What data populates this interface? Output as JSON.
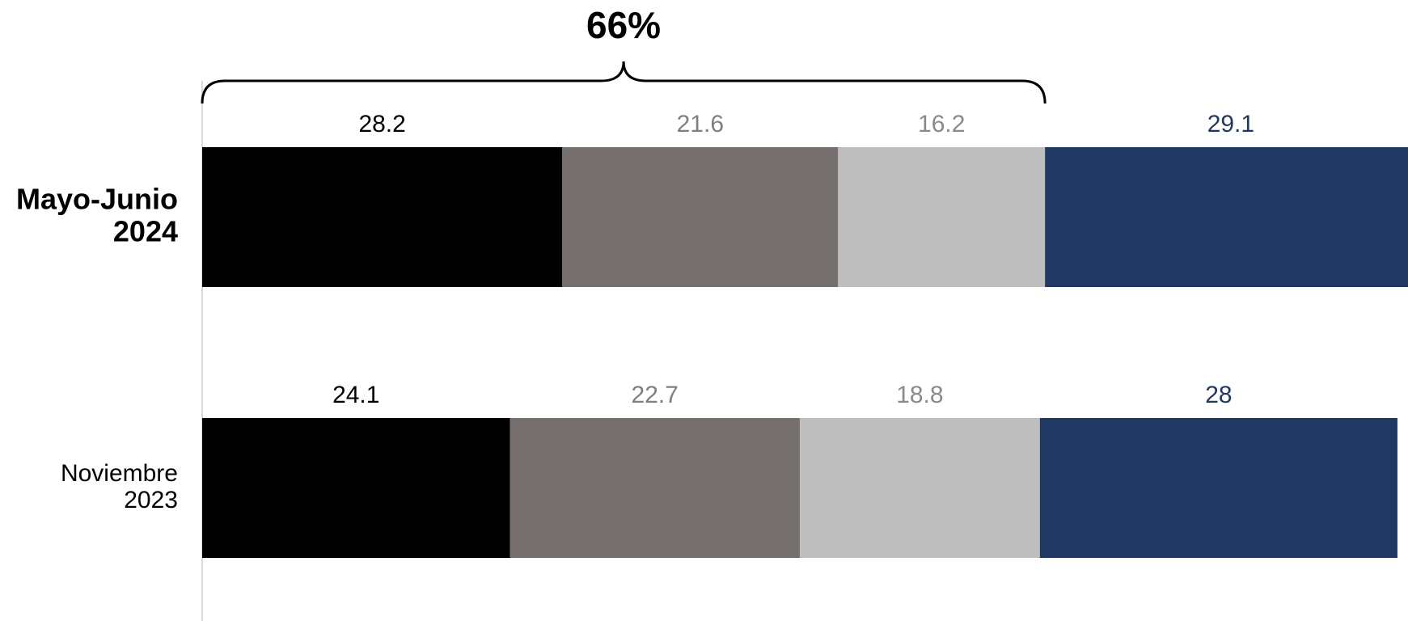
{
  "chart_data": {
    "type": "stacked-bar-horizontal",
    "categories": [
      "Mayo-Junio 2024",
      "Noviembre 2023"
    ],
    "series": [
      {
        "color": "#000000",
        "label_color": "#000000",
        "values": [
          28.2,
          24.1
        ]
      },
      {
        "color": "#75706e",
        "label_color": "#7f7f7f",
        "values": [
          21.6,
          22.7
        ]
      },
      {
        "color": "#bebebe",
        "label_color": "#8a8a8a",
        "values": [
          16.2,
          18.8
        ]
      },
      {
        "color": "#203864",
        "label_color": "#203864",
        "values": [
          29.1,
          28
        ]
      }
    ],
    "annotation": {
      "text": "66%",
      "row": 0,
      "series_span": 3
    }
  }
}
